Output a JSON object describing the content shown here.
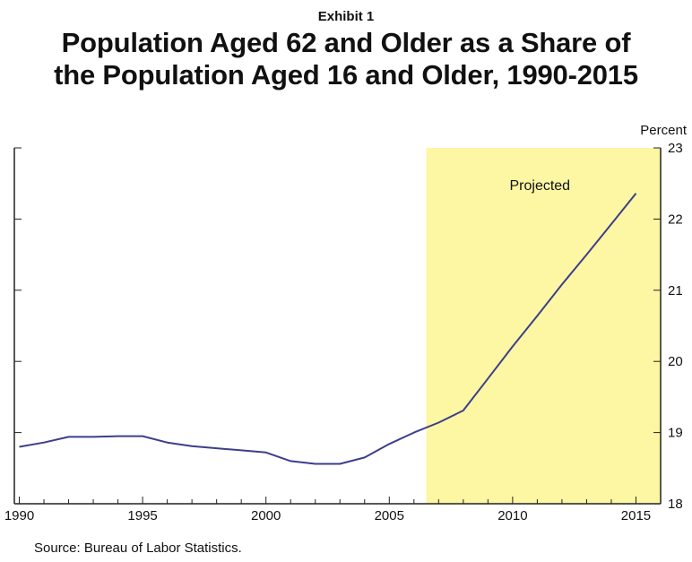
{
  "header": {
    "exhibit": "Exhibit 1",
    "title_line1": "Population Aged 62 and Older as a Share of",
    "title_line2": "the Population Aged 16 and Older, 1990-2015"
  },
  "footer": {
    "source": "Source: Bureau of Labor Statistics."
  },
  "colors": {
    "line": "#3b3f8c",
    "projection_band": "#fdf6a3",
    "axis": "#222222"
  },
  "chart_data": {
    "type": "line",
    "title": "Population Aged 62 and Older as a Share of the Population Aged 16 and Older, 1990-2015",
    "ylabel": "Percent",
    "xlim": [
      1989.8,
      2016
    ],
    "ylim": [
      18,
      23
    ],
    "x_ticks": [
      1990,
      1995,
      2000,
      2005,
      2010,
      2015
    ],
    "y_ticks": [
      18,
      19,
      20,
      21,
      22,
      23
    ],
    "y_axis_side": "right",
    "grid": false,
    "annotation": {
      "label": "Projected",
      "x_start": 2006.5,
      "x_end": 2016
    },
    "series": [
      {
        "x": [
          1990,
          1991,
          1992,
          1993,
          1994,
          1995,
          1996,
          1997,
          1998,
          1999,
          2000,
          2001,
          2002,
          2003,
          2004,
          2005,
          2006,
          2007,
          2008,
          2009,
          2010,
          2011,
          2012,
          2013,
          2014,
          2015
        ],
        "values": [
          18.8,
          18.86,
          18.94,
          18.94,
          18.95,
          18.95,
          18.86,
          18.81,
          18.78,
          18.75,
          18.72,
          18.6,
          18.56,
          18.56,
          18.65,
          18.84,
          19.0,
          19.14,
          19.31,
          19.76,
          20.21,
          20.64,
          21.08,
          21.5,
          21.93,
          22.36
        ]
      }
    ]
  }
}
